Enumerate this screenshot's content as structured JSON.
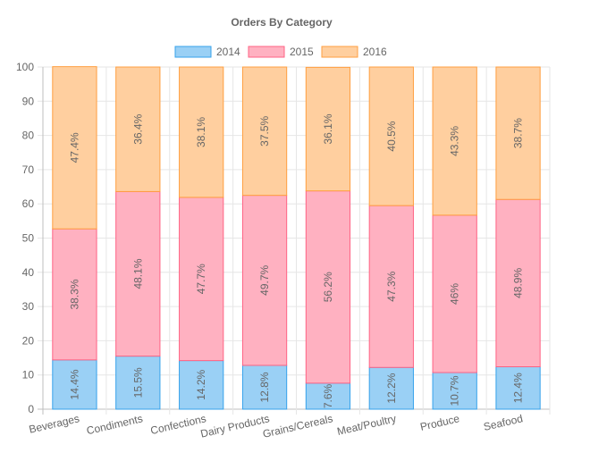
{
  "chart_data": {
    "type": "bar",
    "stacked": true,
    "title": "Orders By Category",
    "categories": [
      "Beverages",
      "Condiments",
      "Confections",
      "Dairy Products",
      "Grains/Cereals",
      "Meat/Poultry",
      "Produce",
      "Seafood"
    ],
    "series": [
      {
        "name": "2014",
        "values": [
          14.4,
          15.5,
          14.2,
          12.8,
          7.6,
          12.2,
          10.7,
          12.4
        ],
        "labels": [
          "14.4%",
          "15.5%",
          "14.2%",
          "12.8%",
          "7.6%",
          "12.2%",
          "10.7%",
          "12.4%"
        ],
        "fill": "#9ad0f5",
        "stroke": "#36a2eb"
      },
      {
        "name": "2015",
        "values": [
          38.3,
          48.1,
          47.7,
          49.7,
          56.2,
          47.3,
          46.0,
          48.9
        ],
        "labels": [
          "38.3%",
          "48.1%",
          "47.7%",
          "49.7%",
          "56.2%",
          "47.3%",
          "46%",
          "48.9%"
        ],
        "fill": "#ffb1c1",
        "stroke": "#ff6384"
      },
      {
        "name": "2016",
        "values": [
          47.4,
          36.4,
          38.1,
          37.5,
          36.1,
          40.5,
          43.3,
          38.7
        ],
        "labels": [
          "47.4%",
          "36.4%",
          "38.1%",
          "37.5%",
          "36.1%",
          "40.5%",
          "43.3%",
          "38.7%"
        ],
        "fill": "#ffcf9f",
        "stroke": "#ff9f40"
      }
    ],
    "ylim": [
      0,
      100
    ],
    "yticks": [
      "0",
      "10",
      "20",
      "30",
      "40",
      "50",
      "60",
      "70",
      "80",
      "90",
      "100"
    ],
    "grid": true,
    "legend_position": "top"
  }
}
